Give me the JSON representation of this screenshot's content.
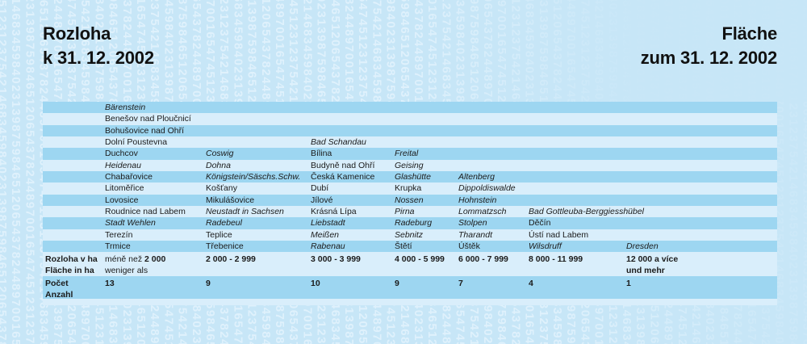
{
  "titles": {
    "left_line1": "Rozloha",
    "left_line2": "k 31. 12. 2002",
    "right_line1": "Fläche",
    "right_line2": "zum 31. 12. 2002"
  },
  "table": {
    "rows": [
      [
        [
          "Bärenstein",
          1
        ],
        null,
        null,
        null,
        null,
        null,
        null
      ],
      [
        [
          "Benešov nad Ploučnicí",
          0
        ],
        null,
        null,
        null,
        null,
        null,
        null
      ],
      [
        [
          "Bohušovice nad Ohří",
          0
        ],
        null,
        null,
        null,
        null,
        null,
        null
      ],
      [
        [
          "Dolní Poustevna",
          0
        ],
        null,
        [
          "Bad Schandau",
          1
        ],
        null,
        null,
        null,
        null
      ],
      [
        [
          "Duchcov",
          0
        ],
        [
          "Coswig",
          1
        ],
        [
          "Bílina",
          0
        ],
        [
          "Freital",
          1
        ],
        null,
        null,
        null
      ],
      [
        [
          "Heidenau",
          1
        ],
        [
          "Dohna",
          1
        ],
        [
          "Budyně nad Ohří",
          0
        ],
        [
          "Geising",
          1
        ],
        null,
        null,
        null
      ],
      [
        [
          "Chabařovice",
          0
        ],
        [
          "Königstein/Säschs.Schw.",
          1
        ],
        [
          "Česká Kamenice",
          0
        ],
        [
          "Glashütte",
          1
        ],
        [
          "Altenberg",
          1
        ],
        null,
        null
      ],
      [
        [
          "Litoměřice",
          0
        ],
        [
          "Košťany",
          0
        ],
        [
          "Dubí",
          0
        ],
        [
          "Krupka",
          0
        ],
        [
          "Dippoldiswalde",
          1
        ],
        null,
        null
      ],
      [
        [
          "Lovosice",
          0
        ],
        [
          "Mikulášovice",
          0
        ],
        [
          "Jílové",
          0
        ],
        [
          "Nossen",
          1
        ],
        [
          "Hohnstein",
          1
        ],
        null,
        null
      ],
      [
        [
          "Roudnice nad Labem",
          0
        ],
        [
          "Neustadt in Sachsen",
          1
        ],
        [
          "Krásná Lípa",
          0
        ],
        [
          "Pirna",
          1
        ],
        [
          "Lommatzsch",
          1
        ],
        [
          "Bad Gottleuba-Berggiesshübel",
          1
        ],
        null
      ],
      [
        [
          "Stadt Wehlen",
          1
        ],
        [
          "Radebeul",
          1
        ],
        [
          "Liebstadt",
          1
        ],
        [
          "Radeburg",
          1
        ],
        [
          "Stolpen",
          1
        ],
        [
          "Děčín",
          0
        ],
        null
      ],
      [
        [
          "Terezín",
          0
        ],
        [
          "Teplice",
          0
        ],
        [
          "Meißen",
          1
        ],
        [
          "Sebnitz",
          1
        ],
        [
          "Tharandt",
          1
        ],
        [
          "Ústí nad Labem",
          0
        ],
        null
      ],
      [
        [
          "Trmice",
          0
        ],
        [
          "Třebenice",
          0
        ],
        [
          "Rabenau",
          1
        ],
        [
          "Štětí",
          0
        ],
        [
          "Úštěk",
          0
        ],
        [
          "Wilsdruff",
          1
        ],
        [
          "Dresden",
          1
        ]
      ]
    ],
    "size_header": {
      "label_cz": "Rozloha v ha",
      "label_de": "Fläche in ha",
      "ranges": [
        {
          "plain": "méně než ",
          "bold": "2 000",
          "line2": "weniger als",
          "line2_bold": false
        },
        {
          "plain": "",
          "bold": "2 000 - 2 999",
          "line2": "",
          "line2_bold": false
        },
        {
          "plain": "",
          "bold": "3 000 - 3 999",
          "line2": "",
          "line2_bold": false
        },
        {
          "plain": "",
          "bold": "4 000 - 5 999",
          "line2": "",
          "line2_bold": false
        },
        {
          "plain": "",
          "bold": "6 000 - 7 999",
          "line2": "",
          "line2_bold": false
        },
        {
          "plain": "",
          "bold": "8 000 - 11 999",
          "line2": "",
          "line2_bold": false
        },
        {
          "plain": "",
          "bold": "12 000 a více",
          "line2": "und mehr",
          "line2_bold": true
        }
      ]
    },
    "count_row": {
      "label_cz": "Počet",
      "label_de": "Anzahl",
      "values": [
        "13",
        "9",
        "10",
        "9",
        "7",
        "4",
        "1"
      ]
    }
  },
  "background": {
    "digits": "4512312375421468345984023139875984651206543782448970016547"
  },
  "colors": {
    "page_bg": "#c7e6f7",
    "row_dark": "#9dd6f1",
    "row_light": "#d9eefb",
    "text": "#1b1b1b",
    "pattern_digits": "#dff1fc"
  }
}
